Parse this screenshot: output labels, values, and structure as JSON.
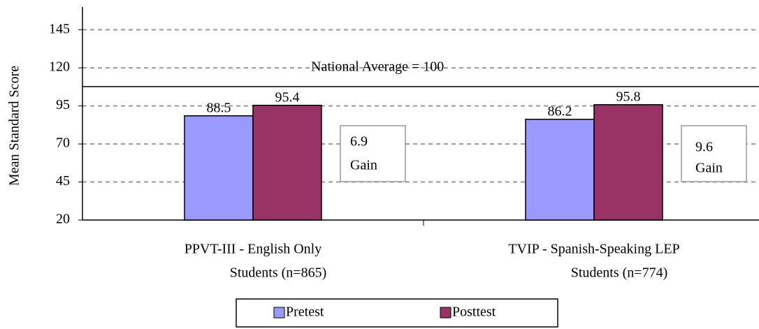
{
  "chart_data": {
    "type": "bar",
    "y_label": "Mean Standard Score",
    "categories": [
      [
        "PPVT-III - English Only",
        "Students (n=865)"
      ],
      [
        "TVIP -  Spanish-Speaking LEP",
        "Students (n=774)"
      ]
    ],
    "series": [
      {
        "name": "Pretest",
        "color": "#9999ff",
        "values": [
          88.5,
          86.2
        ]
      },
      {
        "name": "Posttest",
        "color": "#993366",
        "values": [
          95.4,
          95.8
        ]
      }
    ],
    "ylim": [
      20,
      160
    ],
    "yticks": [
      20,
      45,
      70,
      95,
      120,
      145
    ],
    "grid": true,
    "annotations": [
      "National Average = 100",
      [
        "6.9",
        "Gain"
      ],
      [
        "9.6",
        "Gain"
      ]
    ],
    "legend": "bottom"
  }
}
